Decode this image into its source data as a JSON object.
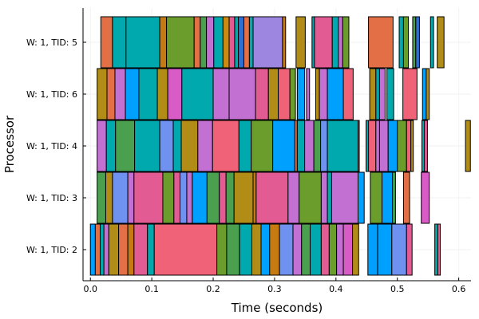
{
  "chart_data": {
    "type": "gantt",
    "title": "",
    "xlabel": "Time (seconds)",
    "ylabel": "Processor",
    "xlim": [
      -0.012,
      0.62
    ],
    "xticks": [
      0.0,
      0.1,
      0.2,
      0.3,
      0.4,
      0.5,
      0.6
    ],
    "xtick_labels": [
      "0.0",
      "0.1",
      "0.2",
      "0.3",
      "0.4",
      "0.5",
      "0.6"
    ],
    "grid": true,
    "rows": [
      {
        "label": "W: 1, TID: 5",
        "tasks": [
          [
            0.017,
            0.036,
            "#e26f46"
          ],
          [
            0.036,
            0.058,
            "#00a9ad"
          ],
          [
            0.058,
            0.113,
            "#00a9ad"
          ],
          [
            0.113,
            0.124,
            "#c67a12"
          ],
          [
            0.124,
            0.169,
            "#6a9d2c"
          ],
          [
            0.169,
            0.179,
            "#e26f46"
          ],
          [
            0.179,
            0.189,
            "#4ba04f"
          ],
          [
            0.189,
            0.201,
            "#c271d2"
          ],
          [
            0.201,
            0.216,
            "#00a9ad"
          ],
          [
            0.216,
            0.226,
            "#cc8a10"
          ],
          [
            0.226,
            0.235,
            "#e35b93"
          ],
          [
            0.235,
            0.241,
            "#00a9ad"
          ],
          [
            0.241,
            0.25,
            "#2e6fd3"
          ],
          [
            0.25,
            0.259,
            "#e26f46"
          ],
          [
            0.259,
            0.265,
            "#00a9ad"
          ],
          [
            0.265,
            0.313,
            "#9c86e0"
          ],
          [
            0.313,
            0.318,
            "#c67a12"
          ],
          [
            0.335,
            0.35,
            "#b18c16"
          ],
          [
            0.361,
            0.365,
            "#00a9ad"
          ],
          [
            0.365,
            0.394,
            "#e35b93"
          ],
          [
            0.394,
            0.404,
            "#00a9ad"
          ],
          [
            0.404,
            0.411,
            "#c271d2"
          ],
          [
            0.411,
            0.421,
            "#6a9d2c"
          ],
          [
            0.453,
            0.493,
            "#e26f46"
          ],
          [
            0.503,
            0.51,
            "#00a9ad"
          ],
          [
            0.51,
            0.518,
            "#6a9d2c"
          ],
          [
            0.525,
            0.53,
            "#4ba04f"
          ],
          [
            0.53,
            0.536,
            "#2e6fd3"
          ],
          [
            0.554,
            0.559,
            "#00a9ad"
          ],
          [
            0.565,
            0.576,
            "#b18c16"
          ]
        ]
      },
      {
        "label": "W: 1, TID: 6",
        "tasks": [
          [
            0.011,
            0.027,
            "#b18c16"
          ],
          [
            0.027,
            0.04,
            "#e26f46"
          ],
          [
            0.04,
            0.057,
            "#c271d2"
          ],
          [
            0.057,
            0.079,
            "#00a0ff"
          ],
          [
            0.079,
            0.109,
            "#00a9ad"
          ],
          [
            0.109,
            0.126,
            "#b18c16"
          ],
          [
            0.126,
            0.149,
            "#d95bc6"
          ],
          [
            0.149,
            0.2,
            "#00a9ad"
          ],
          [
            0.2,
            0.226,
            "#c271d2"
          ],
          [
            0.226,
            0.269,
            "#c271d2"
          ],
          [
            0.269,
            0.29,
            "#e35b93"
          ],
          [
            0.29,
            0.306,
            "#b18c16"
          ],
          [
            0.306,
            0.325,
            "#f06277"
          ],
          [
            0.325,
            0.334,
            "#6a9d2c"
          ],
          [
            0.337,
            0.349,
            "#00a0ff"
          ],
          [
            0.352,
            0.357,
            "#c271d2"
          ],
          [
            0.367,
            0.373,
            "#b18c16"
          ],
          [
            0.373,
            0.386,
            "#c271d2"
          ],
          [
            0.386,
            0.412,
            "#00a0ff"
          ],
          [
            0.412,
            0.428,
            "#f06277"
          ],
          [
            0.455,
            0.465,
            "#b18c16"
          ],
          [
            0.465,
            0.471,
            "#00a9ad"
          ],
          [
            0.471,
            0.48,
            "#c271d2"
          ],
          [
            0.483,
            0.494,
            "#00a9ad"
          ],
          [
            0.509,
            0.532,
            "#f06277"
          ],
          [
            0.541,
            0.547,
            "#00a0ff"
          ],
          [
            0.547,
            0.552,
            "#b18c16"
          ]
        ]
      },
      {
        "label": "W: 1, TID: 4",
        "tasks": [
          [
            0.011,
            0.026,
            "#c271d2"
          ],
          [
            0.026,
            0.041,
            "#00a9ad"
          ],
          [
            0.041,
            0.072,
            "#4ba04f"
          ],
          [
            0.072,
            0.113,
            "#00a9ad"
          ],
          [
            0.113,
            0.135,
            "#6f91f0"
          ],
          [
            0.135,
            0.148,
            "#00a9ad"
          ],
          [
            0.148,
            0.175,
            "#b18c16"
          ],
          [
            0.175,
            0.199,
            "#c271d2"
          ],
          [
            0.199,
            0.242,
            "#f06277"
          ],
          [
            0.242,
            0.262,
            "#00a9ad"
          ],
          [
            0.262,
            0.297,
            "#6a9d2c"
          ],
          [
            0.297,
            0.333,
            "#00a0ff"
          ],
          [
            0.333,
            0.337,
            "#e26f46"
          ],
          [
            0.337,
            0.349,
            "#00a9ad"
          ],
          [
            0.349,
            0.364,
            "#c271d2"
          ],
          [
            0.364,
            0.375,
            "#4ba04f"
          ],
          [
            0.375,
            0.386,
            "#6f91f0"
          ],
          [
            0.386,
            0.436,
            "#00a9ad"
          ],
          [
            0.436,
            0.438,
            "#b18c16"
          ],
          [
            0.449,
            0.453,
            "#00a9ad"
          ],
          [
            0.453,
            0.465,
            "#f06277"
          ],
          [
            0.465,
            0.471,
            "#c271d2"
          ],
          [
            0.471,
            0.485,
            "#c271d2"
          ],
          [
            0.485,
            0.5,
            "#00a0ff"
          ],
          [
            0.5,
            0.515,
            "#6a9d2c"
          ],
          [
            0.515,
            0.522,
            "#f06277"
          ],
          [
            0.522,
            0.526,
            "#b18c16"
          ],
          [
            0.54,
            0.544,
            "#00a9ad"
          ],
          [
            0.544,
            0.549,
            "#e35b93"
          ],
          [
            0.611,
            0.619,
            "#b18c16"
          ]
        ]
      },
      {
        "label": "W: 1, TID: 3",
        "tasks": [
          [
            0.011,
            0.025,
            "#4ba04f"
          ],
          [
            0.025,
            0.036,
            "#b18c16"
          ],
          [
            0.036,
            0.061,
            "#6f91f0"
          ],
          [
            0.061,
            0.071,
            "#c271d2"
          ],
          [
            0.071,
            0.118,
            "#e35b93"
          ],
          [
            0.118,
            0.136,
            "#6a9d2c"
          ],
          [
            0.136,
            0.146,
            "#e35b93"
          ],
          [
            0.146,
            0.157,
            "#6f91f0"
          ],
          [
            0.157,
            0.166,
            "#c271d2"
          ],
          [
            0.166,
            0.19,
            "#00a0ff"
          ],
          [
            0.19,
            0.21,
            "#4ba04f"
          ],
          [
            0.21,
            0.221,
            "#e35b93"
          ],
          [
            0.221,
            0.234,
            "#4ba04f"
          ],
          [
            0.234,
            0.265,
            "#b18c16"
          ],
          [
            0.265,
            0.27,
            "#c67a12"
          ],
          [
            0.27,
            0.322,
            "#e35b93"
          ],
          [
            0.322,
            0.34,
            "#c271d2"
          ],
          [
            0.34,
            0.376,
            "#6a9d2c"
          ],
          [
            0.376,
            0.386,
            "#c271d2"
          ],
          [
            0.386,
            0.393,
            "#00a9ad"
          ],
          [
            0.393,
            0.436,
            "#c271d2"
          ],
          [
            0.436,
            0.446,
            "#00a0ff"
          ],
          [
            0.456,
            0.475,
            "#6a9d2c"
          ],
          [
            0.475,
            0.492,
            "#00a0ff"
          ],
          [
            0.492,
            0.497,
            "#4ba04f"
          ],
          [
            0.51,
            0.52,
            "#e26f46"
          ],
          [
            0.539,
            0.552,
            "#d95bc6"
          ]
        ]
      },
      {
        "label": "W: 1, TID: 2",
        "tasks": [
          [
            0.0,
            0.008,
            "#00a0ff"
          ],
          [
            0.008,
            0.016,
            "#e26f46"
          ],
          [
            0.016,
            0.022,
            "#00a9ad"
          ],
          [
            0.022,
            0.03,
            "#c271d2"
          ],
          [
            0.03,
            0.046,
            "#b18c16"
          ],
          [
            0.046,
            0.061,
            "#e26f46"
          ],
          [
            0.061,
            0.071,
            "#c67a12"
          ],
          [
            0.071,
            0.093,
            "#e35b93"
          ],
          [
            0.093,
            0.104,
            "#00a9ad"
          ],
          [
            0.104,
            0.206,
            "#f06277"
          ],
          [
            0.206,
            0.222,
            "#6a9d2c"
          ],
          [
            0.222,
            0.243,
            "#4ba04f"
          ],
          [
            0.243,
            0.263,
            "#00a9ad"
          ],
          [
            0.263,
            0.278,
            "#b18c16"
          ],
          [
            0.278,
            0.292,
            "#00a0ff"
          ],
          [
            0.292,
            0.308,
            "#c67a12"
          ],
          [
            0.308,
            0.33,
            "#6f91f0"
          ],
          [
            0.33,
            0.344,
            "#c271d2"
          ],
          [
            0.344,
            0.358,
            "#4ba04f"
          ],
          [
            0.358,
            0.376,
            "#00a9ad"
          ],
          [
            0.376,
            0.389,
            "#e35b93"
          ],
          [
            0.389,
            0.401,
            "#6a9d2c"
          ],
          [
            0.401,
            0.412,
            "#c271d2"
          ],
          [
            0.412,
            0.427,
            "#d95bc6"
          ],
          [
            0.427,
            0.437,
            "#b18c16"
          ],
          [
            0.452,
            0.468,
            "#00a0ff"
          ],
          [
            0.468,
            0.491,
            "#00a0ff"
          ],
          [
            0.491,
            0.515,
            "#6f91f0"
          ],
          [
            0.515,
            0.524,
            "#e35b93"
          ],
          [
            0.561,
            0.566,
            "#00a9ad"
          ],
          [
            0.566,
            0.57,
            "#e35b93"
          ]
        ]
      }
    ]
  }
}
